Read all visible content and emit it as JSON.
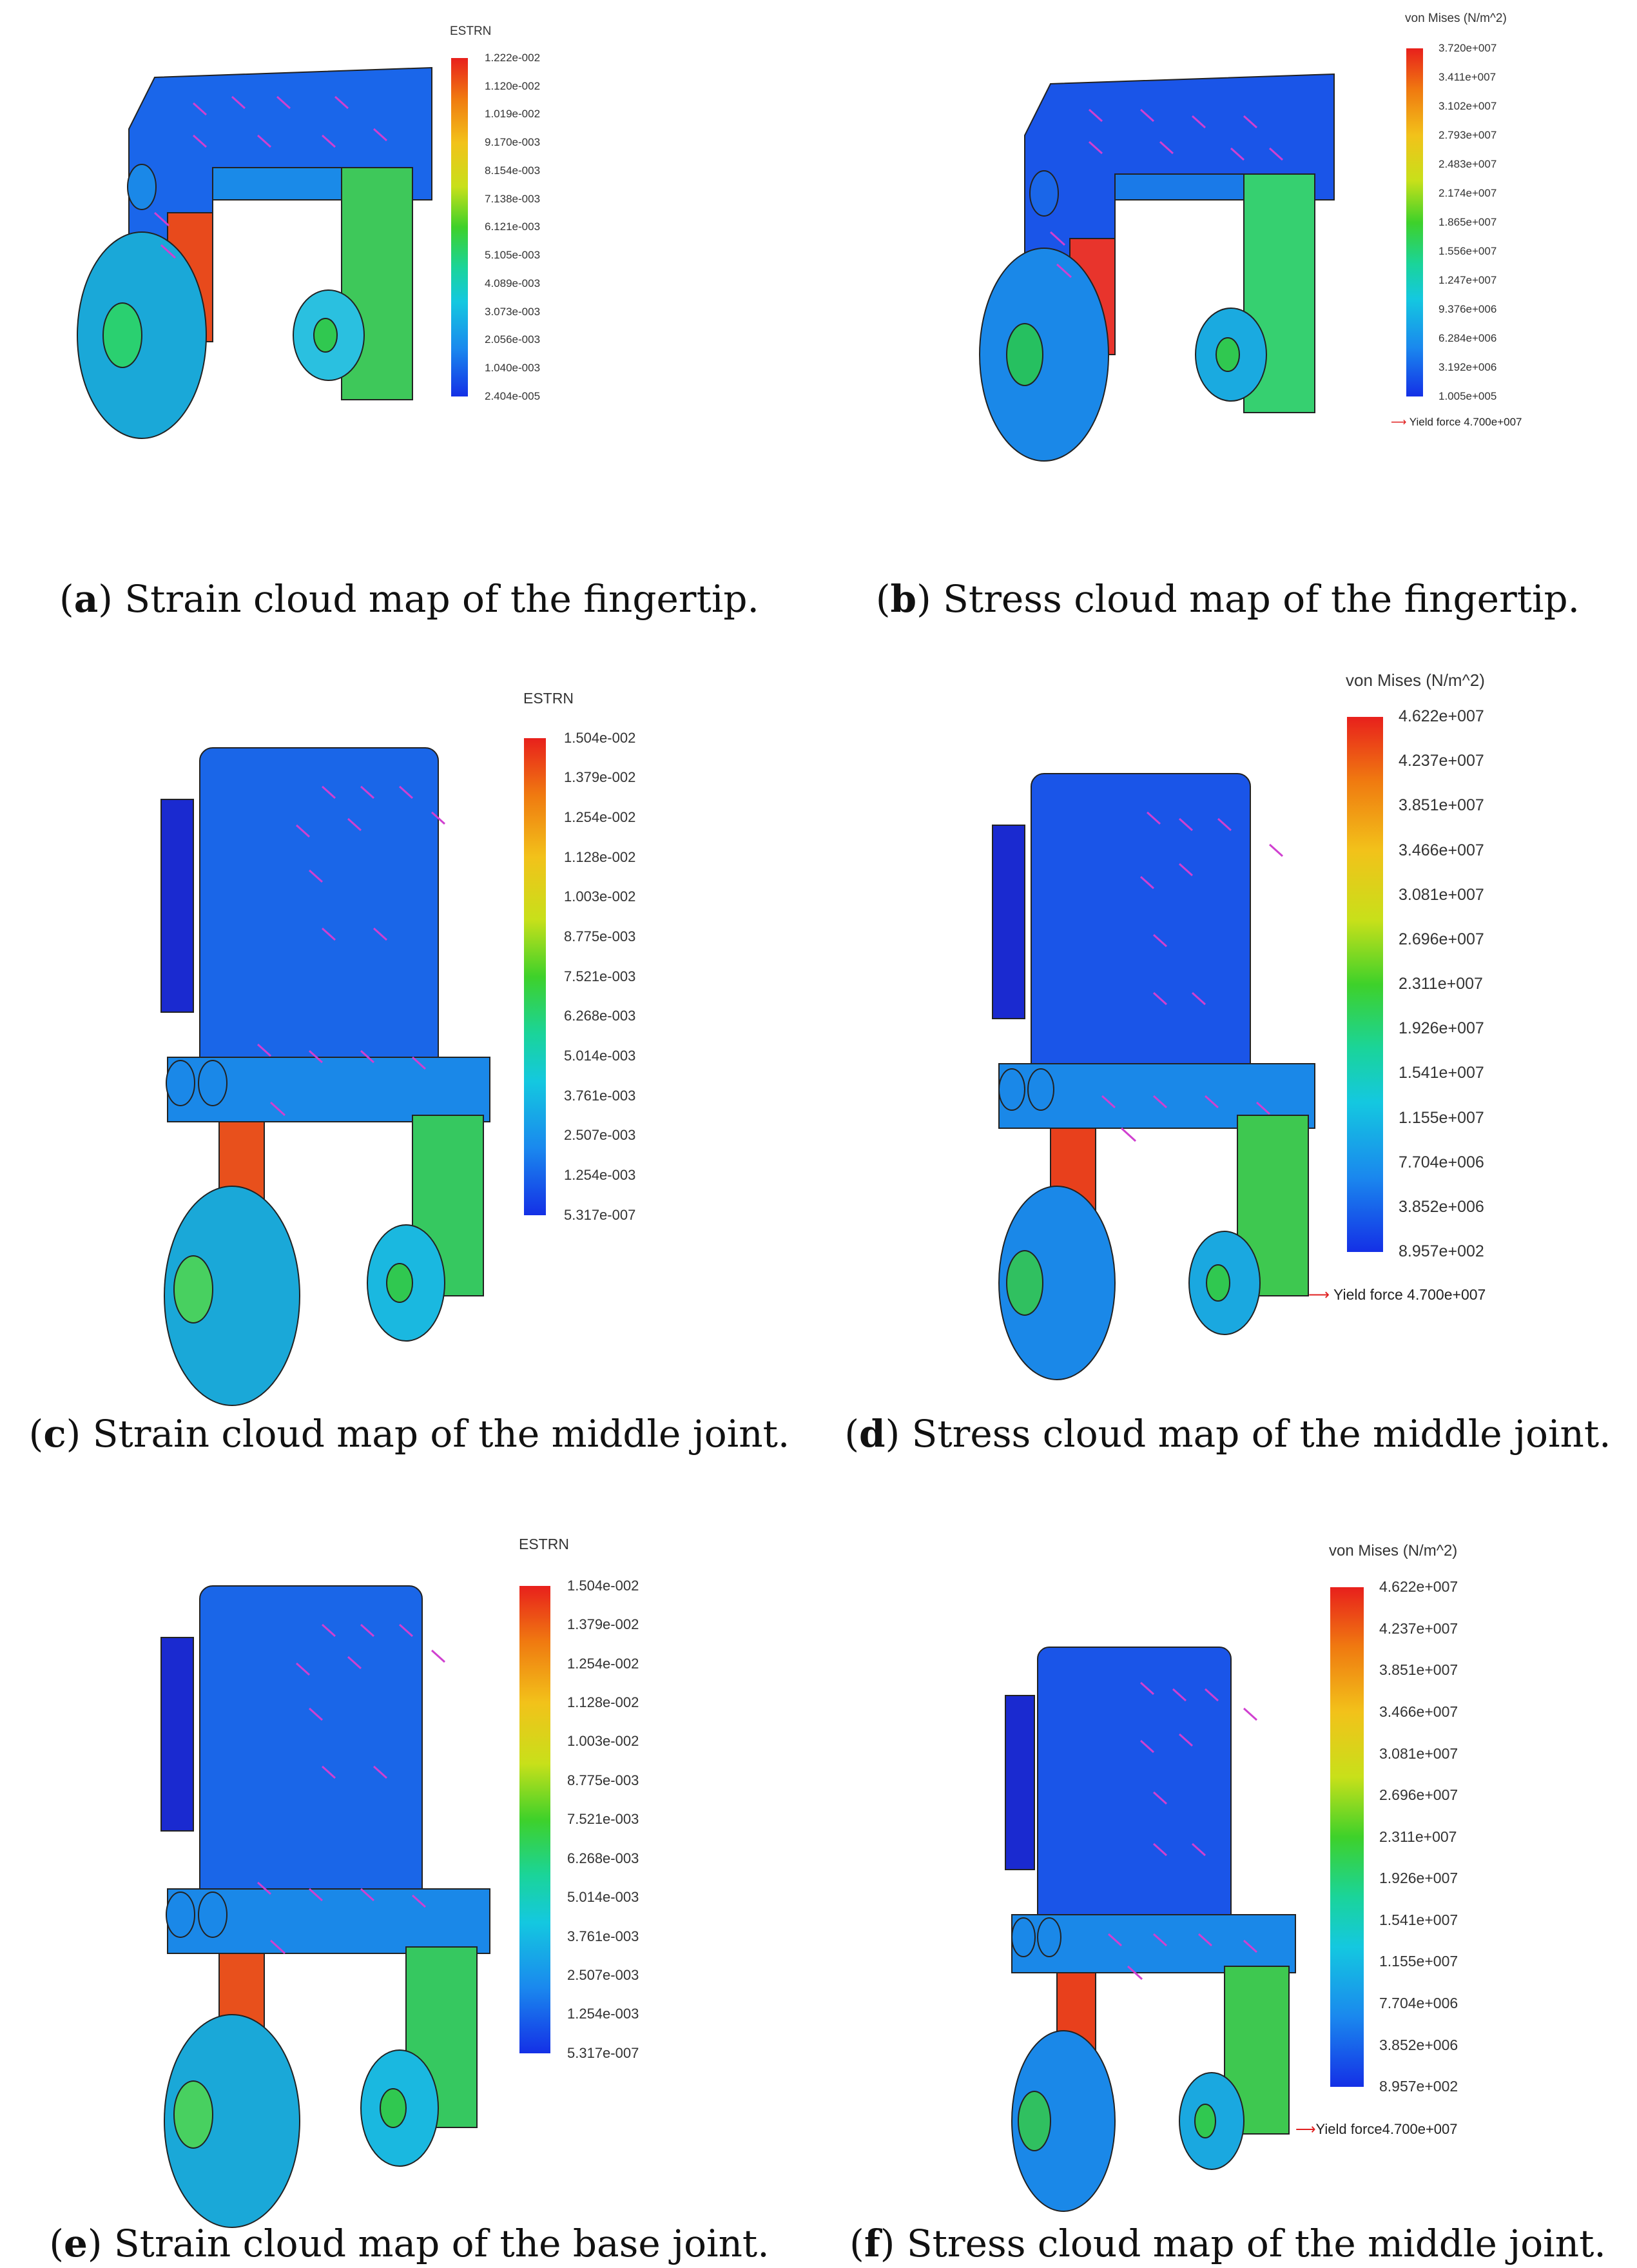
{
  "panels": [
    {
      "id": "a",
      "caption_letter": "a",
      "caption_text": " Strain cloud map of the fingertip.",
      "legend_title": "ESTRN",
      "ticks": [
        "1.222e-002",
        "1.120e-002",
        "1.019e-002",
        "9.170e-003",
        "8.154e-003",
        "7.138e-003",
        "6.121e-003",
        "5.105e-003",
        "4.089e-003",
        "3.073e-003",
        "2.056e-003",
        "1.040e-003",
        "2.404e-005"
      ],
      "yield_label": ""
    },
    {
      "id": "b",
      "caption_letter": "b",
      "caption_text": " Stress cloud map of the fingertip.",
      "legend_title": "von Mises (N/m^2)",
      "ticks": [
        "3.720e+007",
        "3.411e+007",
        "3.102e+007",
        "2.793e+007",
        "2.483e+007",
        "2.174e+007",
        "1.865e+007",
        "1.556e+007",
        "1.247e+007",
        "9.376e+006",
        "6.284e+006",
        "3.192e+006",
        "1.005e+005"
      ],
      "yield_label": "Yield force 4.700e+007"
    },
    {
      "id": "c",
      "caption_letter": "c",
      "caption_text": " Strain cloud map of the middle joint.",
      "legend_title": "ESTRN",
      "ticks": [
        "1.504e-002",
        "1.379e-002",
        "1.254e-002",
        "1.128e-002",
        "1.003e-002",
        "8.775e-003",
        "7.521e-003",
        "6.268e-003",
        "5.014e-003",
        "3.761e-003",
        "2.507e-003",
        "1.254e-003",
        "5.317e-007"
      ],
      "yield_label": ""
    },
    {
      "id": "d",
      "caption_letter": "d",
      "caption_text": " Stress cloud map of the middle joint.",
      "legend_title": "von Mises (N/m^2)",
      "ticks": [
        "4.622e+007",
        "4.237e+007",
        "3.851e+007",
        "3.466e+007",
        "3.081e+007",
        "2.696e+007",
        "2.311e+007",
        "1.926e+007",
        "1.541e+007",
        "1.155e+007",
        "7.704e+006",
        "3.852e+006",
        "8.957e+002"
      ],
      "yield_label": "Yield force 4.700e+007"
    },
    {
      "id": "e",
      "caption_letter": "e",
      "caption_text": " Strain cloud map of the base joint.",
      "legend_title": "ESTRN",
      "ticks": [
        "1.504e-002",
        "1.379e-002",
        "1.254e-002",
        "1.128e-002",
        "1.003e-002",
        "8.775e-003",
        "7.521e-003",
        "6.268e-003",
        "5.014e-003",
        "3.761e-003",
        "2.507e-003",
        "1.254e-003",
        "5.317e-007"
      ],
      "yield_label": ""
    },
    {
      "id": "f",
      "caption_letter": "f",
      "caption_text": " Stress cloud map of the middle joint.",
      "legend_title": "von Mises (N/m^2)",
      "ticks": [
        "4.622e+007",
        "4.237e+007",
        "3.851e+007",
        "3.466e+007",
        "3.081e+007",
        "2.696e+007",
        "2.311e+007",
        "1.926e+007",
        "1.541e+007",
        "1.155e+007",
        "7.704e+006",
        "3.852e+006",
        "8.957e+002"
      ],
      "yield_label": "Yield force4.700e+007"
    }
  ],
  "colors": {
    "blue": "#1a3fe6",
    "cyan": "#14c8e0",
    "green": "#3ed12a",
    "yellow": "#f2c21a",
    "red": "#e8201c",
    "arrow": "#d040d0",
    "yield_arrow": "#e02020"
  }
}
